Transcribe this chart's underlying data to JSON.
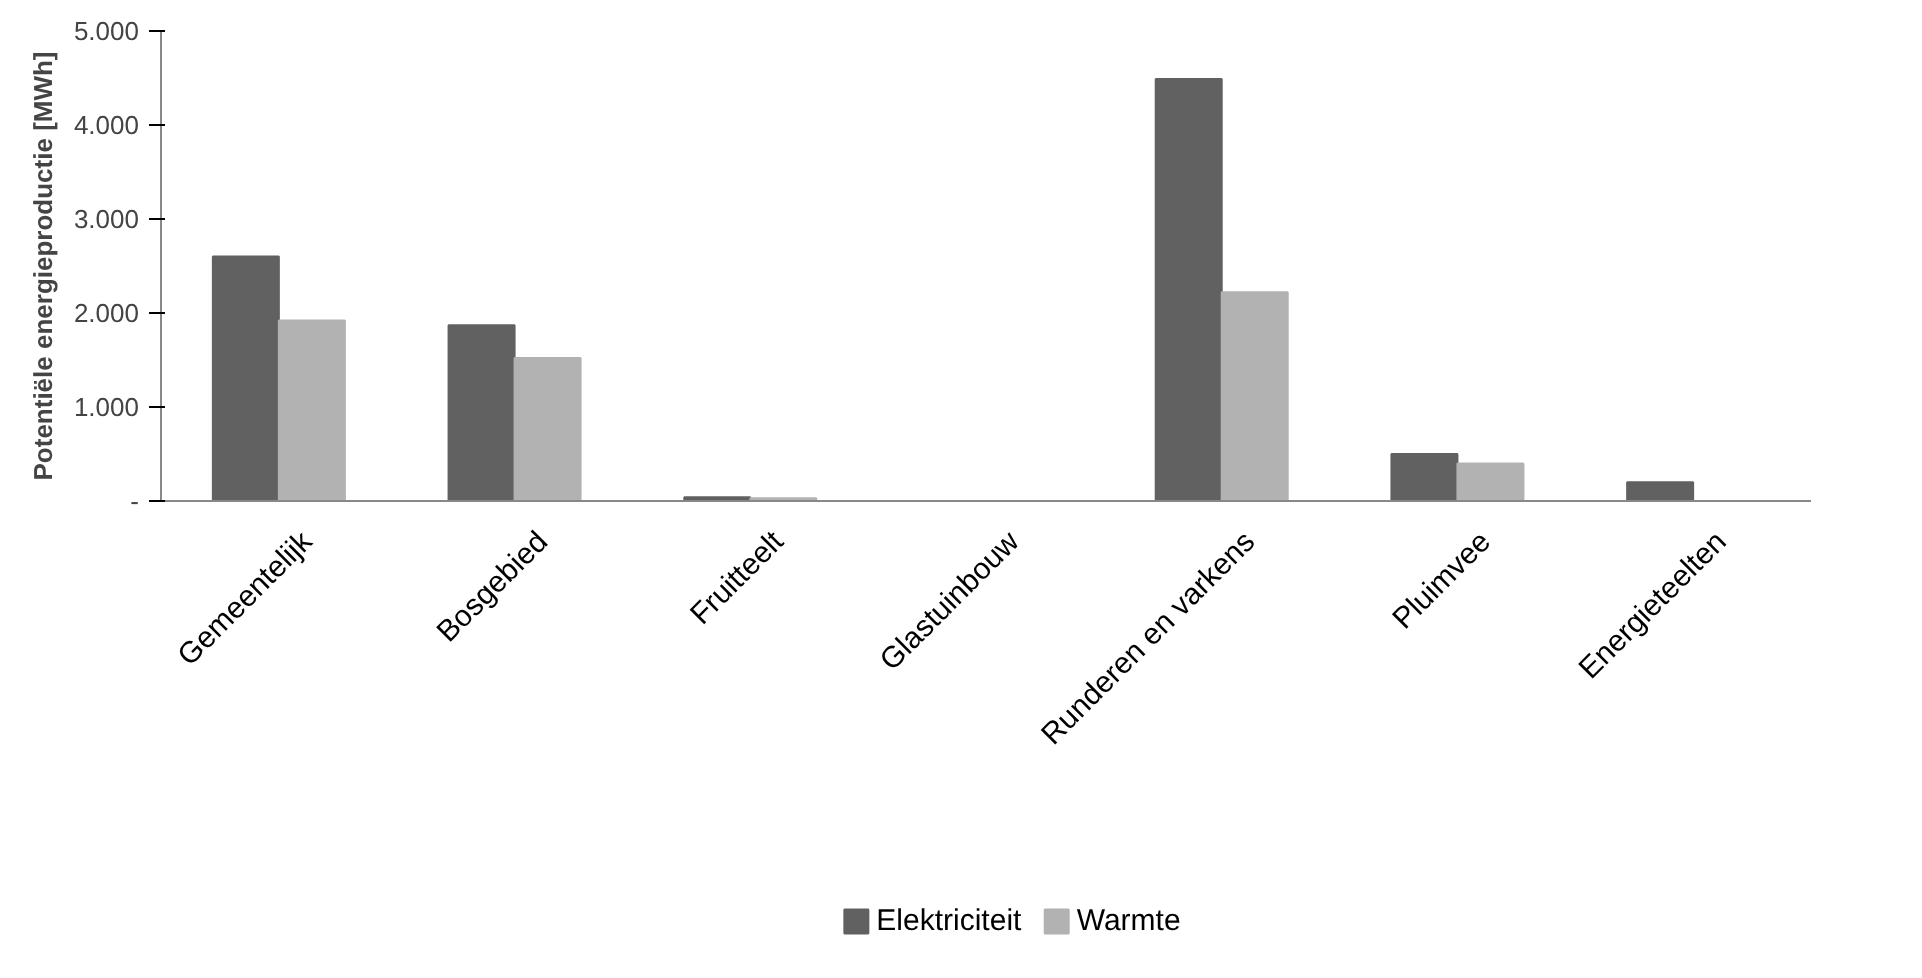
{
  "chart_data": {
    "type": "bar",
    "ylabel": "Potentiële energieproductie [MWh]",
    "categories": [
      "Gemeentelijk",
      "Bosgebied",
      "Fruitteelt",
      "Glastuinbouw",
      "Runderen en varkens",
      "Pluimvee",
      "Energieteelten"
    ],
    "series": [
      {
        "name": "Elektriciteit",
        "color": "#616161",
        "values": [
          2600,
          1870,
          40,
          0,
          4490,
          500,
          200
        ]
      },
      {
        "name": "Warmte",
        "color": "#b2b2b2",
        "values": [
          1920,
          1520,
          30,
          0,
          2220,
          400,
          0
        ]
      }
    ],
    "ylim": [
      0,
      5000
    ],
    "yticks": [
      {
        "value": 0,
        "label": "-"
      },
      {
        "value": 1000,
        "label": "1.000"
      },
      {
        "value": 2000,
        "label": "2.000"
      },
      {
        "value": 3000,
        "label": "3.000"
      },
      {
        "value": 4000,
        "label": "4.000"
      },
      {
        "value": 5000,
        "label": "5.000"
      }
    ],
    "grid": false,
    "legend": "bottom"
  }
}
